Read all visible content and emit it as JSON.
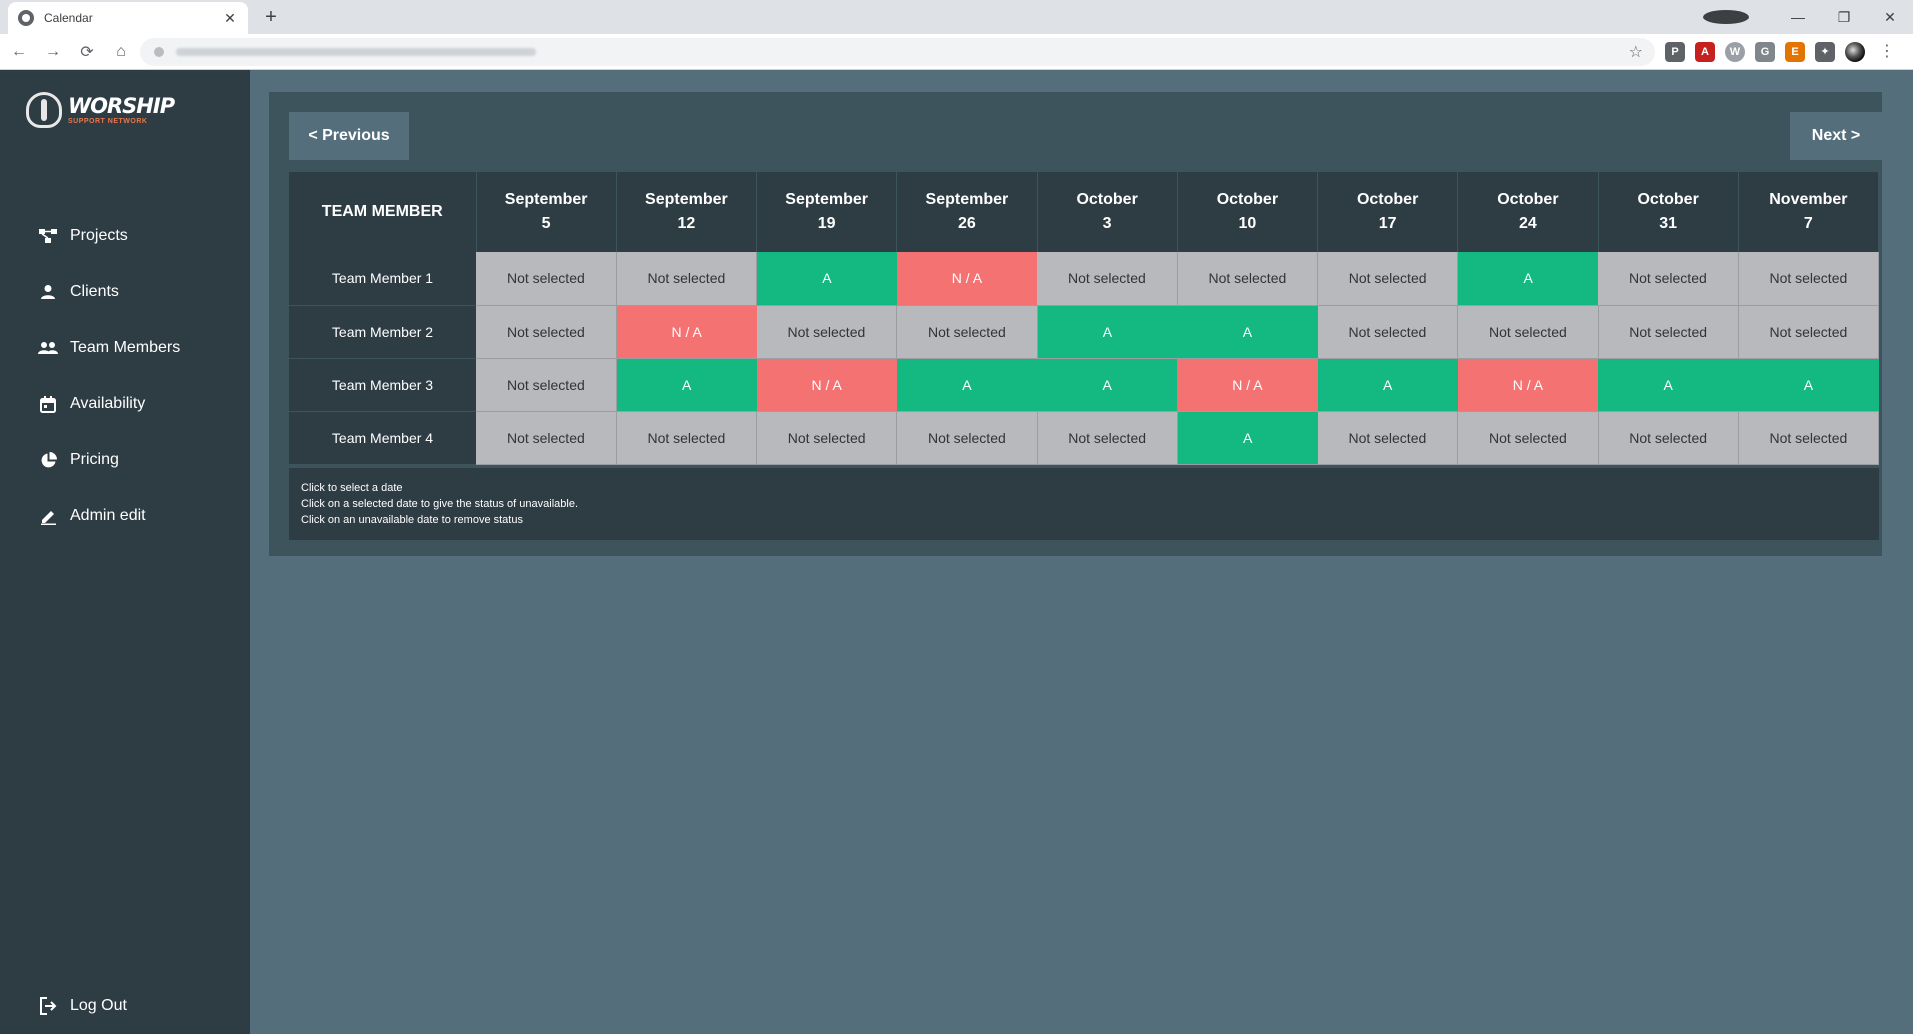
{
  "browser": {
    "tab_title": "Calendar",
    "tab_close": "✕",
    "new_tab": "+",
    "window_controls": {
      "minimize": "—",
      "restore": "❐",
      "close": "✕"
    },
    "nav": {
      "back": "←",
      "forward": "→",
      "reload": "⟳",
      "home": "⌂"
    },
    "star": "☆",
    "extensions": [
      "P",
      "A",
      "W",
      "G",
      "E",
      "✦"
    ],
    "menu": "⋮"
  },
  "logo": {
    "main": "WORSHIP",
    "sub": "SUPPORT NETWORK"
  },
  "sidebar": {
    "items": [
      {
        "label": "Projects",
        "icon": "projects-icon"
      },
      {
        "label": "Clients",
        "icon": "person-icon"
      },
      {
        "label": "Team Members",
        "icon": "people-icon"
      },
      {
        "label": "Availability",
        "icon": "calendar-icon"
      },
      {
        "label": "Pricing",
        "icon": "pie-chart-icon"
      },
      {
        "label": "Admin edit",
        "icon": "pencil-icon"
      }
    ],
    "logout": "Log Out"
  },
  "calendar": {
    "prev_label": "< Previous",
    "next_label": "Next >",
    "header": "TEAM MEMBER",
    "dates": [
      {
        "month": "September",
        "day": "5"
      },
      {
        "month": "September",
        "day": "12"
      },
      {
        "month": "September",
        "day": "19"
      },
      {
        "month": "September",
        "day": "26"
      },
      {
        "month": "October",
        "day": "3"
      },
      {
        "month": "October",
        "day": "10"
      },
      {
        "month": "October",
        "day": "17"
      },
      {
        "month": "October",
        "day": "24"
      },
      {
        "month": "October",
        "day": "31"
      },
      {
        "month": "November",
        "day": "7"
      }
    ],
    "rows": [
      {
        "name": "Team Member 1",
        "cells": [
          "Not selected",
          "Not selected",
          "A",
          "N / A",
          "Not selected",
          "Not selected",
          "Not selected",
          "A",
          "Not selected",
          "Not selected"
        ]
      },
      {
        "name": "Team Member 2",
        "cells": [
          "Not selected",
          "N / A",
          "Not selected",
          "Not selected",
          "A",
          "A",
          "Not selected",
          "Not selected",
          "Not selected",
          "Not selected"
        ]
      },
      {
        "name": "Team Member 3",
        "cells": [
          "Not selected",
          "A",
          "N / A",
          "A",
          "A",
          "N / A",
          "A",
          "N / A",
          "A",
          "A"
        ]
      },
      {
        "name": "Team Member 4",
        "cells": [
          "Not selected",
          "Not selected",
          "Not selected",
          "Not selected",
          "Not selected",
          "A",
          "Not selected",
          "Not selected",
          "Not selected",
          "Not selected"
        ]
      }
    ],
    "notes": [
      "Click to select a date",
      "Click on a selected date to give the status of unavailable.",
      "Click on an unavailable date to remove status"
    ]
  },
  "colors": {
    "available": "#13b980",
    "unavailable": "#f57272",
    "not_selected": "#b7b9bc",
    "sidebar": "#2e3c43",
    "page": "#546f7b"
  }
}
